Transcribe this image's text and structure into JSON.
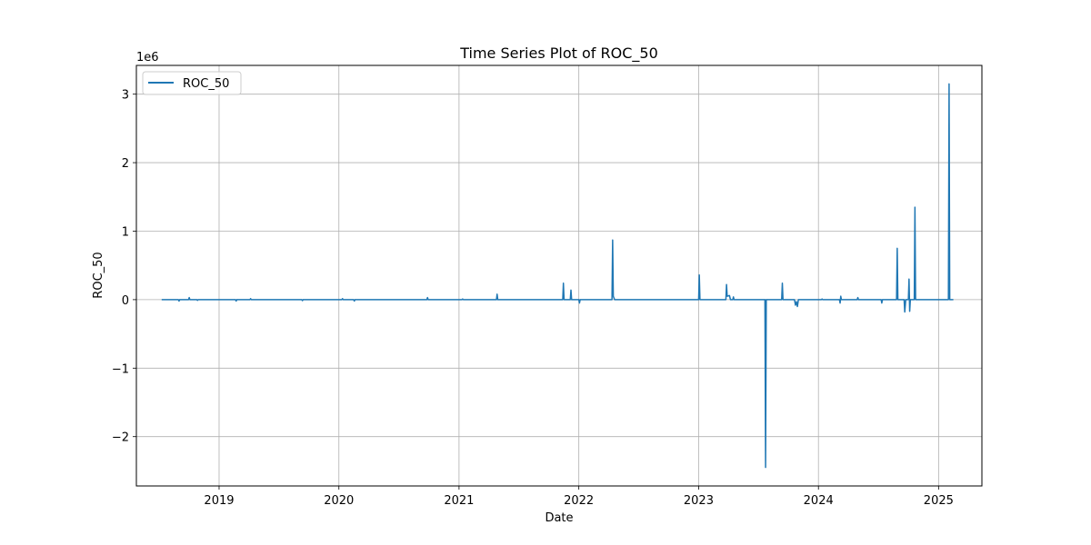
{
  "chart_data": {
    "type": "line",
    "title": "Time Series Plot of ROC_50",
    "xlabel": "Date",
    "ylabel": "ROC_50",
    "y_offset_label": "1e6",
    "xlim": [
      "2018-04-24",
      "2025-05-13"
    ],
    "ylim": [
      -2.72,
      3.42
    ],
    "y_scale_factor": 1000000,
    "x_ticks": [
      "2019",
      "2020",
      "2021",
      "2022",
      "2023",
      "2024",
      "2025"
    ],
    "x_tick_dates": [
      "2019-01-01",
      "2020-01-01",
      "2021-01-01",
      "2022-01-01",
      "2023-01-01",
      "2024-01-01",
      "2025-01-01"
    ],
    "y_ticks": [
      3,
      2,
      1,
      0,
      -1,
      -2
    ],
    "y_tick_labels": [
      "3",
      "2",
      "1",
      "0",
      "−1",
      "−2"
    ],
    "grid": true,
    "legend_position": "top-left",
    "series": [
      {
        "name": "ROC_50",
        "color": "#1f77b4",
        "points": [
          [
            "2018-07-10",
            0.0
          ],
          [
            "2018-08-30",
            0.0
          ],
          [
            "2018-09-01",
            -0.02
          ],
          [
            "2018-09-03",
            0.0
          ],
          [
            "2018-09-30",
            0.0
          ],
          [
            "2018-10-02",
            0.03
          ],
          [
            "2018-10-04",
            0.0
          ],
          [
            "2018-10-25",
            0.0
          ],
          [
            "2018-10-27",
            -0.01
          ],
          [
            "2018-10-29",
            0.0
          ],
          [
            "2019-02-20",
            0.0
          ],
          [
            "2019-02-22",
            -0.02
          ],
          [
            "2019-02-24",
            0.0
          ],
          [
            "2019-04-05",
            0.0
          ],
          [
            "2019-04-07",
            0.015
          ],
          [
            "2019-04-09",
            0.0
          ],
          [
            "2019-09-10",
            0.0
          ],
          [
            "2019-09-12",
            -0.015
          ],
          [
            "2019-09-14",
            0.0
          ],
          [
            "2020-01-10",
            0.0
          ],
          [
            "2020-01-12",
            0.015
          ],
          [
            "2020-01-14",
            0.0
          ],
          [
            "2020-02-15",
            0.0
          ],
          [
            "2020-02-17",
            -0.02
          ],
          [
            "2020-02-19",
            0.0
          ],
          [
            "2020-09-25",
            0.0
          ],
          [
            "2020-09-27",
            0.03
          ],
          [
            "2020-09-29",
            0.0
          ],
          [
            "2021-01-10",
            0.0
          ],
          [
            "2021-01-12",
            0.01
          ],
          [
            "2021-01-14",
            0.0
          ],
          [
            "2021-04-25",
            0.0
          ],
          [
            "2021-04-27",
            0.08
          ],
          [
            "2021-04-29",
            0.0
          ],
          [
            "2021-11-13",
            0.0
          ],
          [
            "2021-11-15",
            0.24
          ],
          [
            "2021-11-17",
            0.0
          ],
          [
            "2021-12-06",
            0.0
          ],
          [
            "2021-12-08",
            0.14
          ],
          [
            "2021-12-10",
            0.0
          ],
          [
            "2022-01-01",
            0.0
          ],
          [
            "2022-01-03",
            -0.05
          ],
          [
            "2022-01-05",
            0.0
          ],
          [
            "2022-04-12",
            0.0
          ],
          [
            "2022-04-14",
            0.87
          ],
          [
            "2022-04-16",
            0.05
          ],
          [
            "2022-04-20",
            0.0
          ],
          [
            "2023-01-01",
            0.0
          ],
          [
            "2023-01-03",
            0.36
          ],
          [
            "2023-01-05",
            0.0
          ],
          [
            "2023-03-25",
            0.0
          ],
          [
            "2023-03-27",
            0.22
          ],
          [
            "2023-03-29",
            0.05
          ],
          [
            "2023-04-05",
            0.06
          ],
          [
            "2023-04-08",
            0.0
          ],
          [
            "2023-04-15",
            0.0
          ],
          [
            "2023-04-17",
            0.04
          ],
          [
            "2023-04-19",
            0.0
          ],
          [
            "2023-07-22",
            0.0
          ],
          [
            "2023-07-24",
            -2.45
          ],
          [
            "2023-07-26",
            0.0
          ],
          [
            "2023-09-11",
            0.0
          ],
          [
            "2023-09-13",
            0.24
          ],
          [
            "2023-09-15",
            0.0
          ],
          [
            "2023-10-20",
            0.0
          ],
          [
            "2023-10-23",
            -0.08
          ],
          [
            "2023-10-26",
            -0.03
          ],
          [
            "2023-10-29",
            -0.1
          ],
          [
            "2023-11-01",
            0.0
          ],
          [
            "2024-01-10",
            0.0
          ],
          [
            "2024-01-12",
            0.01
          ],
          [
            "2024-01-14",
            0.0
          ],
          [
            "2024-03-05",
            0.0
          ],
          [
            "2024-03-07",
            -0.05
          ],
          [
            "2024-03-09",
            0.05
          ],
          [
            "2024-03-11",
            0.0
          ],
          [
            "2024-04-28",
            0.0
          ],
          [
            "2024-04-30",
            0.03
          ],
          [
            "2024-05-02",
            0.0
          ],
          [
            "2024-07-10",
            0.0
          ],
          [
            "2024-07-12",
            -0.05
          ],
          [
            "2024-07-14",
            0.0
          ],
          [
            "2024-08-26",
            0.0
          ],
          [
            "2024-08-28",
            0.75
          ],
          [
            "2024-08-30",
            0.0
          ],
          [
            "2024-09-18",
            0.0
          ],
          [
            "2024-09-20",
            -0.18
          ],
          [
            "2024-09-23",
            0.0
          ],
          [
            "2024-10-01",
            0.0
          ],
          [
            "2024-10-03",
            0.3
          ],
          [
            "2024-10-05",
            -0.17
          ],
          [
            "2024-10-07",
            0.0
          ],
          [
            "2024-10-19",
            0.0
          ],
          [
            "2024-10-21",
            1.35
          ],
          [
            "2024-10-23",
            0.0
          ],
          [
            "2025-01-31",
            0.0
          ],
          [
            "2025-02-02",
            3.15
          ],
          [
            "2025-02-04",
            0.0
          ],
          [
            "2025-02-15",
            0.0
          ]
        ]
      }
    ]
  }
}
